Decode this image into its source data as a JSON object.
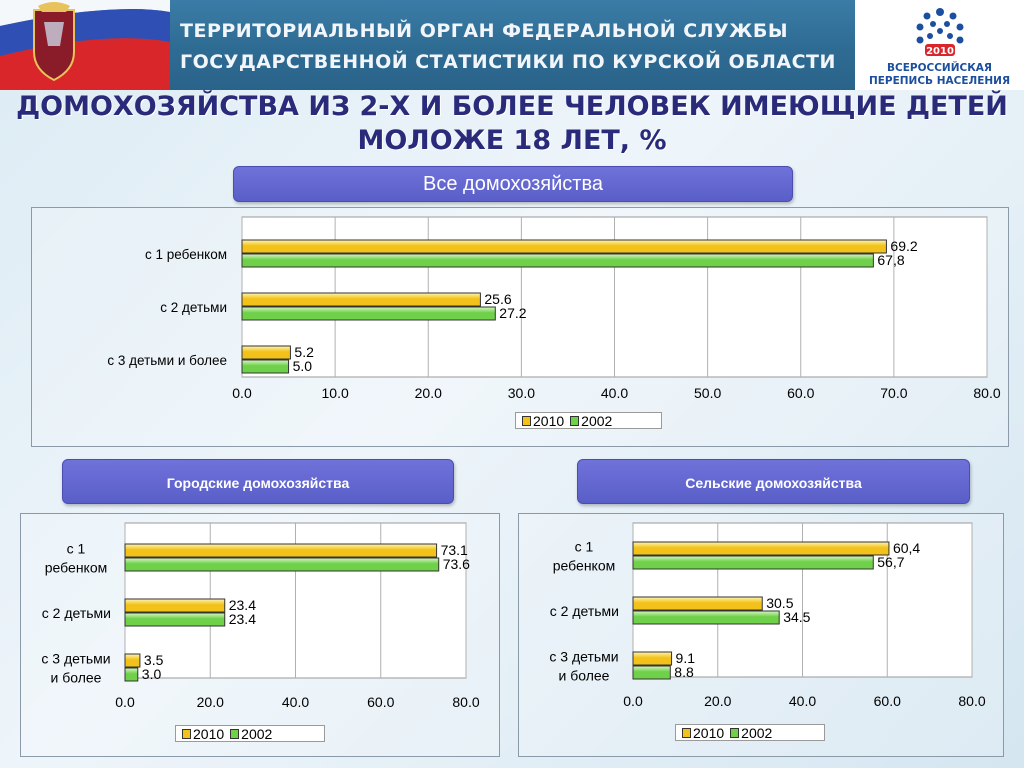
{
  "header": {
    "line1": "ТЕРРИТОРИАЛЬНЫЙ ОРГАН ФЕДЕРАЛЬНОЙ СЛУЖБЫ",
    "line2": "ГОСУДАРСТВЕННОЙ СТАТИСТИКИ ПО КУРСКОЙ ОБЛАСТИ",
    "logo_year": "2010",
    "logo_line1": "ВСЕРОССИЙСКАЯ",
    "logo_line2": "ПЕРЕПИСЬ НАСЕЛЕНИЯ",
    "flag_icon": "russian-flag-with-kursk-coat-of-arms",
    "logo_icon": "census-2010-logo"
  },
  "title": {
    "line1": "ДОМОХОЗЯЙСТВА ИЗ 2-Х И БОЛЕЕ ЧЕЛОВЕК ИМЕЮЩИЕ ДЕТЕЙ",
    "line2": "МОЛОЖЕ 18 ЛЕТ, %"
  },
  "colors": {
    "series_2010": "#f2c21a",
    "series_2002": "#6fd04a",
    "pill": "#5f63cc",
    "title": "#2a2a7a"
  },
  "chart_data": [
    {
      "type": "bar",
      "orientation": "horizontal",
      "title": "Все домохозяйства",
      "categories": [
        "с 1 ребенком",
        "с 2 детьми",
        "с 3 детьми и более"
      ],
      "series": [
        {
          "name": "2010",
          "values": [
            69.2,
            25.6,
            5.2
          ],
          "labels": [
            "69.2",
            "25.6",
            "5.2"
          ]
        },
        {
          "name": "2002",
          "values": [
            67.8,
            27.2,
            5.0
          ],
          "labels": [
            "67,8",
            "27.2",
            "5.0"
          ]
        }
      ],
      "xlim": [
        0,
        80
      ],
      "ticks": [
        "0.0",
        "10.0",
        "20.0",
        "30.0",
        "40.0",
        "50.0",
        "60.0",
        "70.0",
        "80.0"
      ],
      "legend": "bottom"
    },
    {
      "type": "bar",
      "orientation": "horizontal",
      "title": "Городские домохозяйства",
      "categories": [
        [
          "с 1",
          "ребенком"
        ],
        [
          "с 2 детьми"
        ],
        [
          "с 3 детьми",
          "и более"
        ]
      ],
      "series": [
        {
          "name": "2010",
          "values": [
            73.1,
            23.4,
            3.5
          ],
          "labels": [
            "73.1",
            "23.4",
            "3.5"
          ]
        },
        {
          "name": "2002",
          "values": [
            73.6,
            23.4,
            3.0
          ],
          "labels": [
            "73.6",
            "23.4",
            "3.0"
          ]
        }
      ],
      "xlim": [
        0,
        80
      ],
      "ticks": [
        "0.0",
        "20.0",
        "40.0",
        "60.0",
        "80.0"
      ],
      "legend": "bottom"
    },
    {
      "type": "bar",
      "orientation": "horizontal",
      "title": "Сельские домохозяйства",
      "categories": [
        [
          "с 1",
          "ребенком"
        ],
        [
          "с 2 детьми"
        ],
        [
          "с 3 детьми",
          "и более"
        ]
      ],
      "series": [
        {
          "name": "2010",
          "values": [
            60.4,
            30.5,
            9.1
          ],
          "labels": [
            "60,4",
            "30.5",
            "9.1"
          ]
        },
        {
          "name": "2002",
          "values": [
            56.7,
            34.5,
            8.8
          ],
          "labels": [
            "56,7",
            "34.5",
            "8.8"
          ]
        }
      ],
      "xlim": [
        0,
        80
      ],
      "ticks": [
        "0.0",
        "20.0",
        "40.0",
        "60.0",
        "80.0"
      ],
      "legend": "bottom"
    }
  ]
}
